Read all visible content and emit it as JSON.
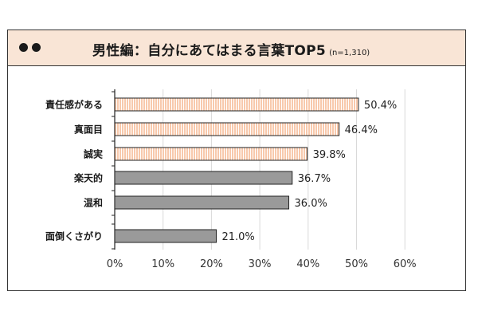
{
  "header": {
    "title": "男性編：自分にあてはまる言葉TOP5",
    "note": "(n=1,310)"
  },
  "colors": {
    "header_bg": "#f9e5d6",
    "highlight_fill": "#f8c9ac",
    "highlight_stripe": "#ffffff",
    "gray_fill": "#9a9a9a",
    "bar_stroke": "#222222"
  },
  "chart_data": {
    "type": "bar",
    "orientation": "horizontal",
    "categories": [
      "責任感がある",
      "真面目",
      "誠実",
      "楽天的",
      "温和",
      "面倒くさがり"
    ],
    "values": [
      50.4,
      46.4,
      39.8,
      36.7,
      36.0,
      21.0
    ],
    "value_labels": [
      "50.4%",
      "46.4%",
      "39.8%",
      "36.7%",
      "36.0%",
      "21.0%"
    ],
    "highlighted": [
      true,
      true,
      true,
      false,
      false,
      false
    ],
    "xlim": [
      0,
      60
    ],
    "xticks": [
      "0%",
      "10%",
      "20%",
      "30%",
      "40%",
      "50%",
      "60%"
    ],
    "grid": true,
    "title": "",
    "xlabel": "",
    "ylabel": ""
  }
}
